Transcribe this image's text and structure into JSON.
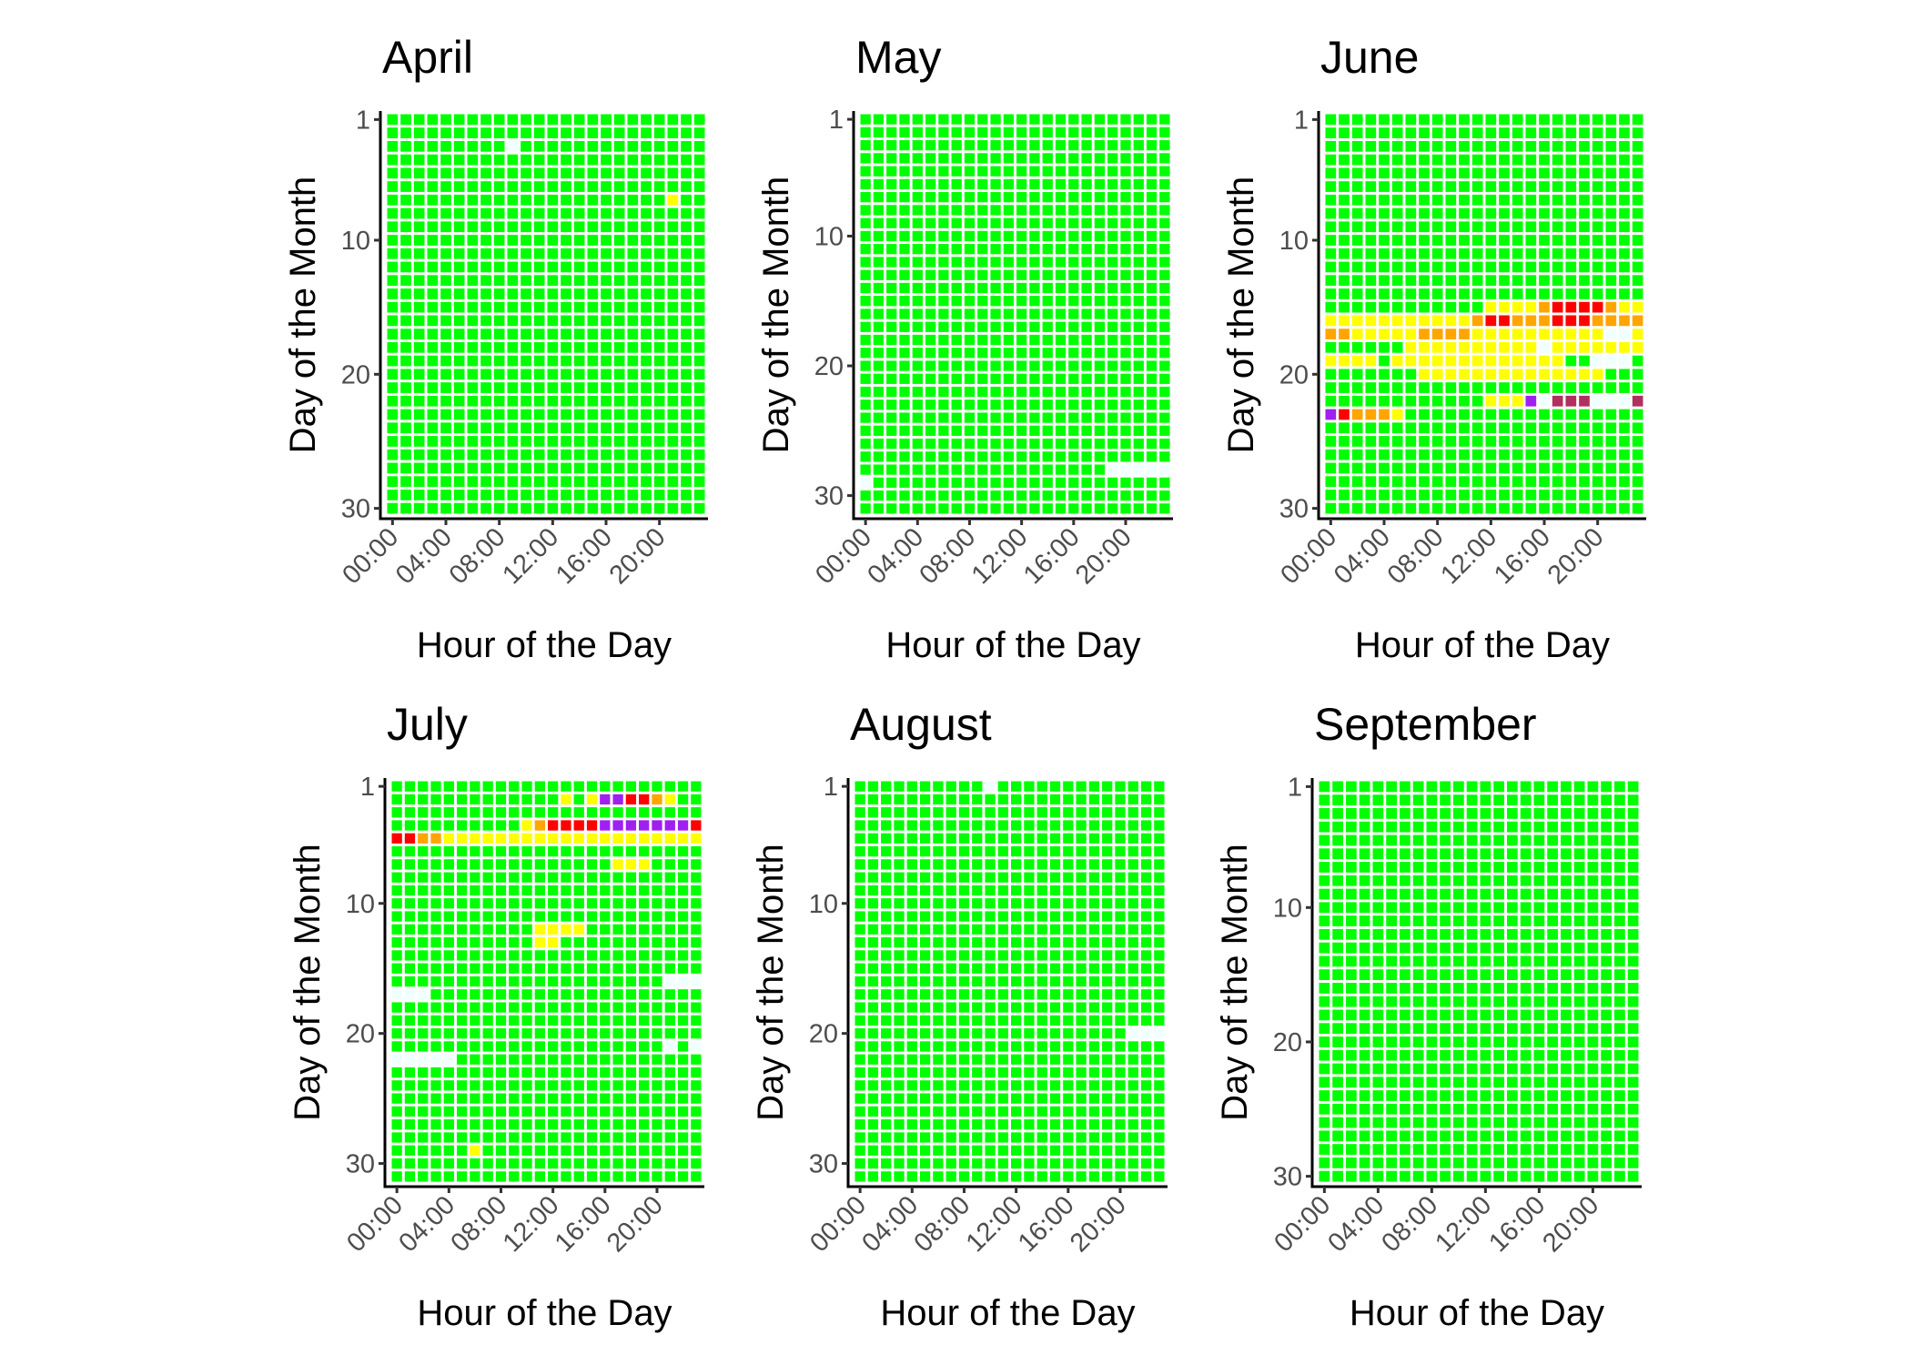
{
  "chart_data": [
    {
      "type": "heatmap",
      "title": "April",
      "xlabel": "Hour of the Day",
      "ylabel": "Day of the Month",
      "days": 30,
      "rows": {
        "3": "GGGGGGGGG.GGGGGGGGGGGGGG",
        "7": "GGGGGGGGGGGGGGGGGGGGGYGG"
      }
    },
    {
      "type": "heatmap",
      "title": "May",
      "xlabel": "Hour of the Day",
      "ylabel": "Day of the Month",
      "days": 31,
      "rows": {
        "28": "GGGGGGGGGGGGGGGGGGG.....",
        "29": ".GGGGGGGGGGGGGGGGGGGGGGG"
      }
    },
    {
      "type": "heatmap",
      "title": "June",
      "xlabel": "Hour of the Day",
      "ylabel": "Day of the Month",
      "days": 30,
      "rows": {
        "15": "GGGGGGGGGGGGYYYYORRRROYY",
        "16": "YYYYYYYYYYYORROOORRROOOO",
        "17": "OOYYYYYOOOOYYYYYYYYYY..Y",
        "18": "GGGGGGYYYYYYYYYY.YYYYYYY",
        "19": "YYYYGYYYYYYYYYYYYYGG...G",
        "20": "GGGGGGGYYYYYYYYYYYYYYGGG",
        "22": "GGGGGGGGGGGGYYYP.MMM...M",
        "23": "PROOOYGGGGGGGGGGGGGGGGGG"
      }
    },
    {
      "type": "heatmap",
      "title": "July",
      "xlabel": "Hour of the Day",
      "ylabel": "Day of the Month",
      "days": 31,
      "rows": {
        "2": "GGGGGGGGGGGGGYGYPPRROYGG",
        "4": "GGGGGGGGGGYORRRRPPPPPPPR",
        "5": "RROOYYYYYYYYYYYYYYYYYYYY",
        "7": "GGGGGGGGGGGGGGGGGYYYGGGG",
        "12": "GGGGGGGGGGGYYYYGGGGGGGGG",
        "13": "GGGGGGGGGGGYYGGGGGGGGGGG",
        "16": "GGGGGGGGGGGGGGGGGGGGG...",
        "17": "...GGGGGGGGGGGGGGGGGGGGG",
        "21": "GGGGGGGGGGGGGGGGGGGGG.G.",
        "22": ".....GGGGGGGGGGGGGGGGGGG",
        "29": "GGGGGGYGGGGGGGGGGGGGGGGG"
      }
    },
    {
      "type": "heatmap",
      "title": "August",
      "xlabel": "Hour of the Day",
      "ylabel": "Day of the Month",
      "days": 31,
      "rows": {
        "1": "GGGGGGGGGG.GGGGGGGGGGGGG",
        "20": "GGGGGGGGGGGGGGGGGGGGG..."
      }
    },
    {
      "type": "heatmap",
      "title": "September",
      "xlabel": "Hour of the Day",
      "ylabel": "Day of the Month",
      "days": 30,
      "rows": {}
    }
  ],
  "x_ticks": [
    "00:00",
    "04:00",
    "08:00",
    "12:00",
    "16:00",
    "20:00"
  ],
  "y_ticks": [
    1,
    10,
    20,
    30
  ],
  "y_reversed": true,
  "hours": 24,
  "colors": {
    "G": "#00ff00",
    "Y": "#ffff00",
    "O": "#ffa500",
    "R": "#ff0000",
    "P": "#a020f0",
    "M": "#b03060",
    ".": "#f0ffff"
  },
  "tile_border": "#ffffff"
}
